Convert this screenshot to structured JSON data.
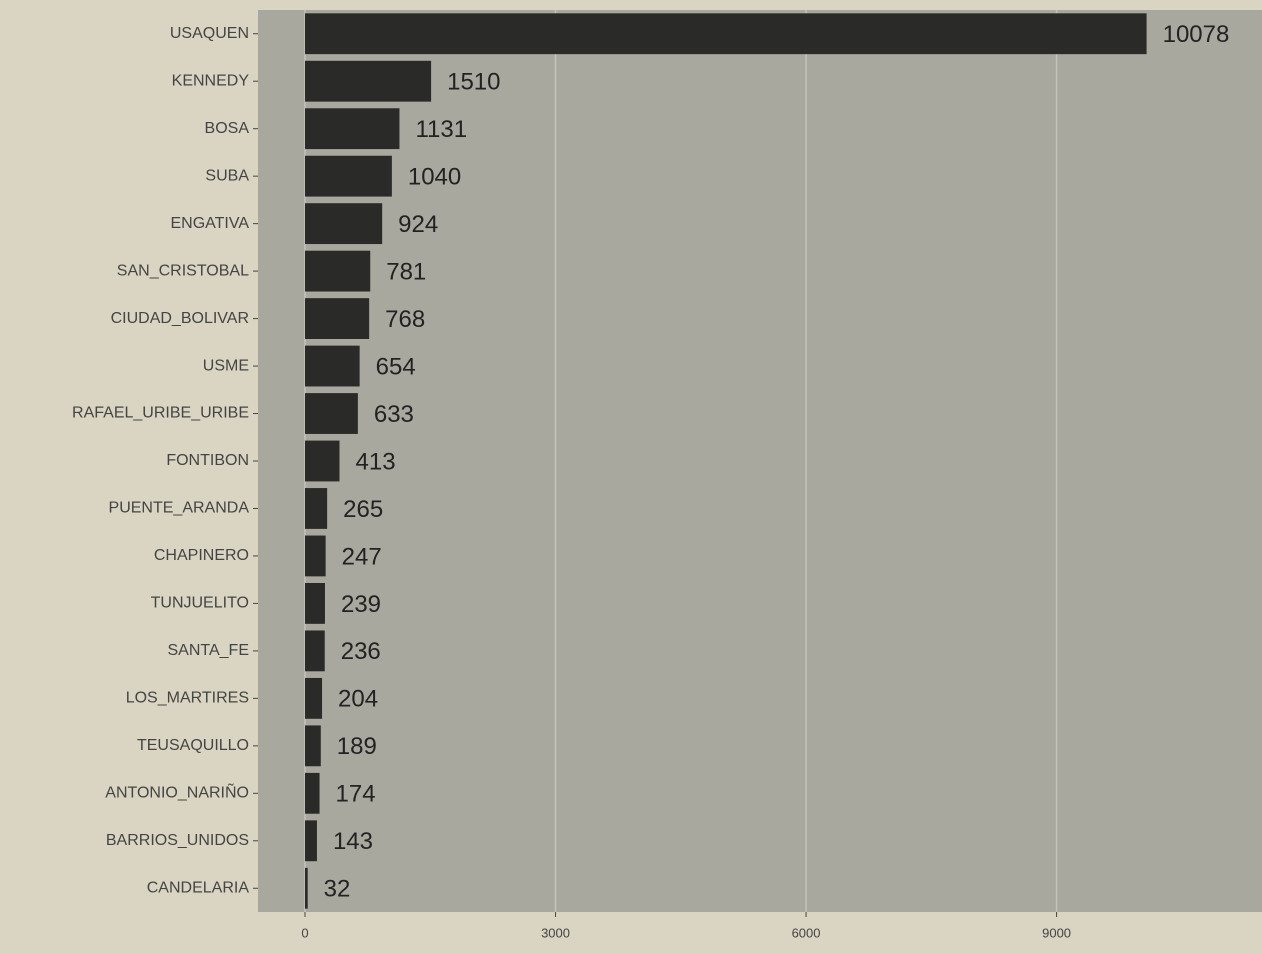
{
  "chart_data": {
    "type": "bar",
    "orientation": "horizontal",
    "categories": [
      "USAQUEN",
      "KENNEDY",
      "BOSA",
      "SUBA",
      "ENGATIVA",
      "SAN_CRISTOBAL",
      "CIUDAD_BOLIVAR",
      "USME",
      "RAFAEL_URIBE_URIBE",
      "FONTIBON",
      "PUENTE_ARANDA",
      "CHAPINERO",
      "TUNJUELITO",
      "SANTA_FE",
      "LOS_MARTIRES",
      "TEUSAQUILLO",
      "ANTONIO_NARIÑO",
      "BARRIOS_UNIDOS",
      "CANDELARIA"
    ],
    "values": [
      10078,
      1510,
      1131,
      1040,
      924,
      781,
      768,
      654,
      633,
      413,
      265,
      247,
      239,
      236,
      204,
      189,
      174,
      143,
      32
    ],
    "color": "#2a2a28",
    "xlim": [
      -563,
      11460
    ],
    "xticks": [
      0,
      3000,
      6000,
      9000
    ],
    "grid": true
  }
}
